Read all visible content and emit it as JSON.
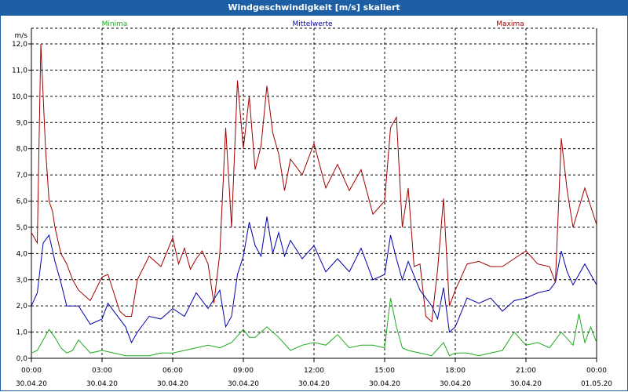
{
  "title": "Windgeschwindigkeit [m/s] skaliert",
  "colors": {
    "titlebar": "#1d5fa5",
    "minima": "#1faa1f",
    "mittel": "#0000aa",
    "maxima": "#a00000"
  },
  "chart_data": {
    "type": "line",
    "title": "Windgeschwindigkeit [m/s] skaliert",
    "ylabel": "m/s",
    "xlabel": "",
    "ylim": [
      0,
      12
    ],
    "y_ticks": [
      "0,0",
      "1,0",
      "2,0",
      "3,0",
      "4,0",
      "5,0",
      "6,0",
      "7,0",
      "8,0",
      "9,0",
      "10,0",
      "11,0",
      "12,0"
    ],
    "xlim_hours": [
      0,
      24
    ],
    "x_ticks": [
      {
        "time": "00:00",
        "date": "30.04.20"
      },
      {
        "time": "03:00",
        "date": "30.04.20"
      },
      {
        "time": "06:00",
        "date": "30.04.20"
      },
      {
        "time": "09:00",
        "date": "30.04.20"
      },
      {
        "time": "12:00",
        "date": "30.04.20"
      },
      {
        "time": "15:00",
        "date": "30.04.20"
      },
      {
        "time": "18:00",
        "date": "30.04.20"
      },
      {
        "time": "21:00",
        "date": "30.04.20"
      },
      {
        "time": "00:00",
        "date": "01.05.20"
      }
    ],
    "grid": true,
    "legend_position": "top",
    "series": [
      {
        "name": "Minima",
        "color": "#1faa1f",
        "x": [
          0,
          0.25,
          0.5,
          0.75,
          1,
          1.25,
          1.5,
          1.75,
          2,
          2.5,
          3,
          3.5,
          4,
          4.5,
          5,
          5.5,
          6,
          6.5,
          7,
          7.5,
          8,
          8.5,
          9,
          9.25,
          9.5,
          10,
          10.5,
          11,
          11.5,
          12,
          12.5,
          13,
          13.5,
          14,
          14.5,
          15,
          15.25,
          15.5,
          15.75,
          16,
          16.5,
          17,
          17.5,
          17.75,
          18,
          18.5,
          19,
          19.5,
          20,
          20.5,
          21,
          21.5,
          22,
          22.5,
          23,
          23.25,
          23.5,
          23.75,
          24
        ],
        "y": [
          0.2,
          0.3,
          0.7,
          1.1,
          0.8,
          0.4,
          0.2,
          0.3,
          0.7,
          0.2,
          0.3,
          0.2,
          0.1,
          0.1,
          0.1,
          0.2,
          0.2,
          0.3,
          0.4,
          0.5,
          0.4,
          0.6,
          1.1,
          0.8,
          0.8,
          1.2,
          0.8,
          0.3,
          0.5,
          0.6,
          0.5,
          0.9,
          0.4,
          0.5,
          0.5,
          0.4,
          2.3,
          1.2,
          0.4,
          0.3,
          0.2,
          0.1,
          0.6,
          0.1,
          0.2,
          0.2,
          0.1,
          0.2,
          0.3,
          1.0,
          0.5,
          0.6,
          0.4,
          1.0,
          0.5,
          1.7,
          0.6,
          1.2,
          0.6
        ]
      },
      {
        "name": "Mittelwerte",
        "color": "#0000aa",
        "x": [
          0,
          0.25,
          0.5,
          0.75,
          1,
          1.25,
          1.5,
          1.75,
          2,
          2.5,
          3,
          3.25,
          3.5,
          4,
          4.25,
          4.5,
          5,
          5.5,
          6,
          6.5,
          7,
          7.5,
          8,
          8.25,
          8.5,
          8.75,
          9,
          9.25,
          9.5,
          9.75,
          10,
          10.25,
          10.5,
          10.75,
          11,
          11.5,
          12,
          12.5,
          13,
          13.5,
          14,
          14.5,
          15,
          15.25,
          15.5,
          15.75,
          16,
          16.5,
          17,
          17.25,
          17.5,
          17.75,
          18,
          18.5,
          19,
          19.5,
          20,
          20.5,
          21,
          21.5,
          22,
          22.25,
          22.5,
          22.75,
          23,
          23.5,
          24
        ],
        "y": [
          2.0,
          2.5,
          4.4,
          4.7,
          3.7,
          2.9,
          2.0,
          2.0,
          2.0,
          1.3,
          1.5,
          2.1,
          1.8,
          1.2,
          0.6,
          1.0,
          1.6,
          1.5,
          1.9,
          1.6,
          2.5,
          1.9,
          2.6,
          1.2,
          1.6,
          3.2,
          3.9,
          5.2,
          4.3,
          3.9,
          5.4,
          4.0,
          4.8,
          3.9,
          4.5,
          3.8,
          4.3,
          3.3,
          3.8,
          3.3,
          4.2,
          3.0,
          3.2,
          4.7,
          3.8,
          3.0,
          3.7,
          2.6,
          2.0,
          1.5,
          2.7,
          1.0,
          1.2,
          2.3,
          2.1,
          2.3,
          1.8,
          2.2,
          2.3,
          2.5,
          2.6,
          2.9,
          4.1,
          3.3,
          2.8,
          3.6,
          2.8
        ]
      },
      {
        "name": "Maxima",
        "color": "#a00000",
        "x": [
          0,
          0.25,
          0.4,
          0.5,
          0.6,
          0.75,
          0.9,
          1,
          1.25,
          1.5,
          1.75,
          2,
          2.5,
          3,
          3.25,
          3.5,
          3.75,
          4,
          4.25,
          4.5,
          5,
          5.5,
          6,
          6.25,
          6.5,
          6.75,
          7,
          7.25,
          7.5,
          7.75,
          8,
          8.25,
          8.5,
          8.75,
          9,
          9.25,
          9.5,
          9.75,
          10,
          10.25,
          10.5,
          10.75,
          11,
          11.5,
          12,
          12.5,
          13,
          13.5,
          14,
          14.5,
          15,
          15.25,
          15.5,
          15.75,
          16,
          16.25,
          16.5,
          16.75,
          17,
          17.25,
          17.5,
          17.75,
          18,
          18.5,
          19,
          19.5,
          20,
          20.5,
          21,
          21.5,
          22,
          22.25,
          22.5,
          22.75,
          23,
          23.5,
          24
        ],
        "y": [
          4.8,
          4.4,
          12.0,
          10.0,
          8.0,
          6.0,
          5.6,
          5.0,
          4.0,
          3.6,
          3.0,
          2.6,
          2.2,
          3.1,
          3.2,
          2.5,
          1.8,
          1.6,
          1.6,
          3.0,
          3.9,
          3.5,
          4.6,
          3.6,
          4.2,
          3.4,
          3.8,
          4.1,
          3.6,
          2.1,
          4.0,
          8.8,
          5.0,
          10.6,
          8.0,
          10.0,
          7.2,
          8.1,
          10.4,
          8.6,
          7.8,
          6.4,
          7.6,
          7.0,
          8.2,
          6.5,
          7.4,
          6.4,
          7.2,
          5.5,
          6.0,
          8.8,
          9.2,
          5.0,
          6.5,
          3.5,
          3.6,
          1.6,
          1.4,
          3.4,
          6.1,
          2.0,
          2.6,
          3.6,
          3.7,
          3.5,
          3.5,
          3.8,
          4.1,
          3.6,
          3.5,
          2.9,
          8.4,
          6.4,
          5.0,
          6.5,
          5.1
        ]
      }
    ]
  }
}
